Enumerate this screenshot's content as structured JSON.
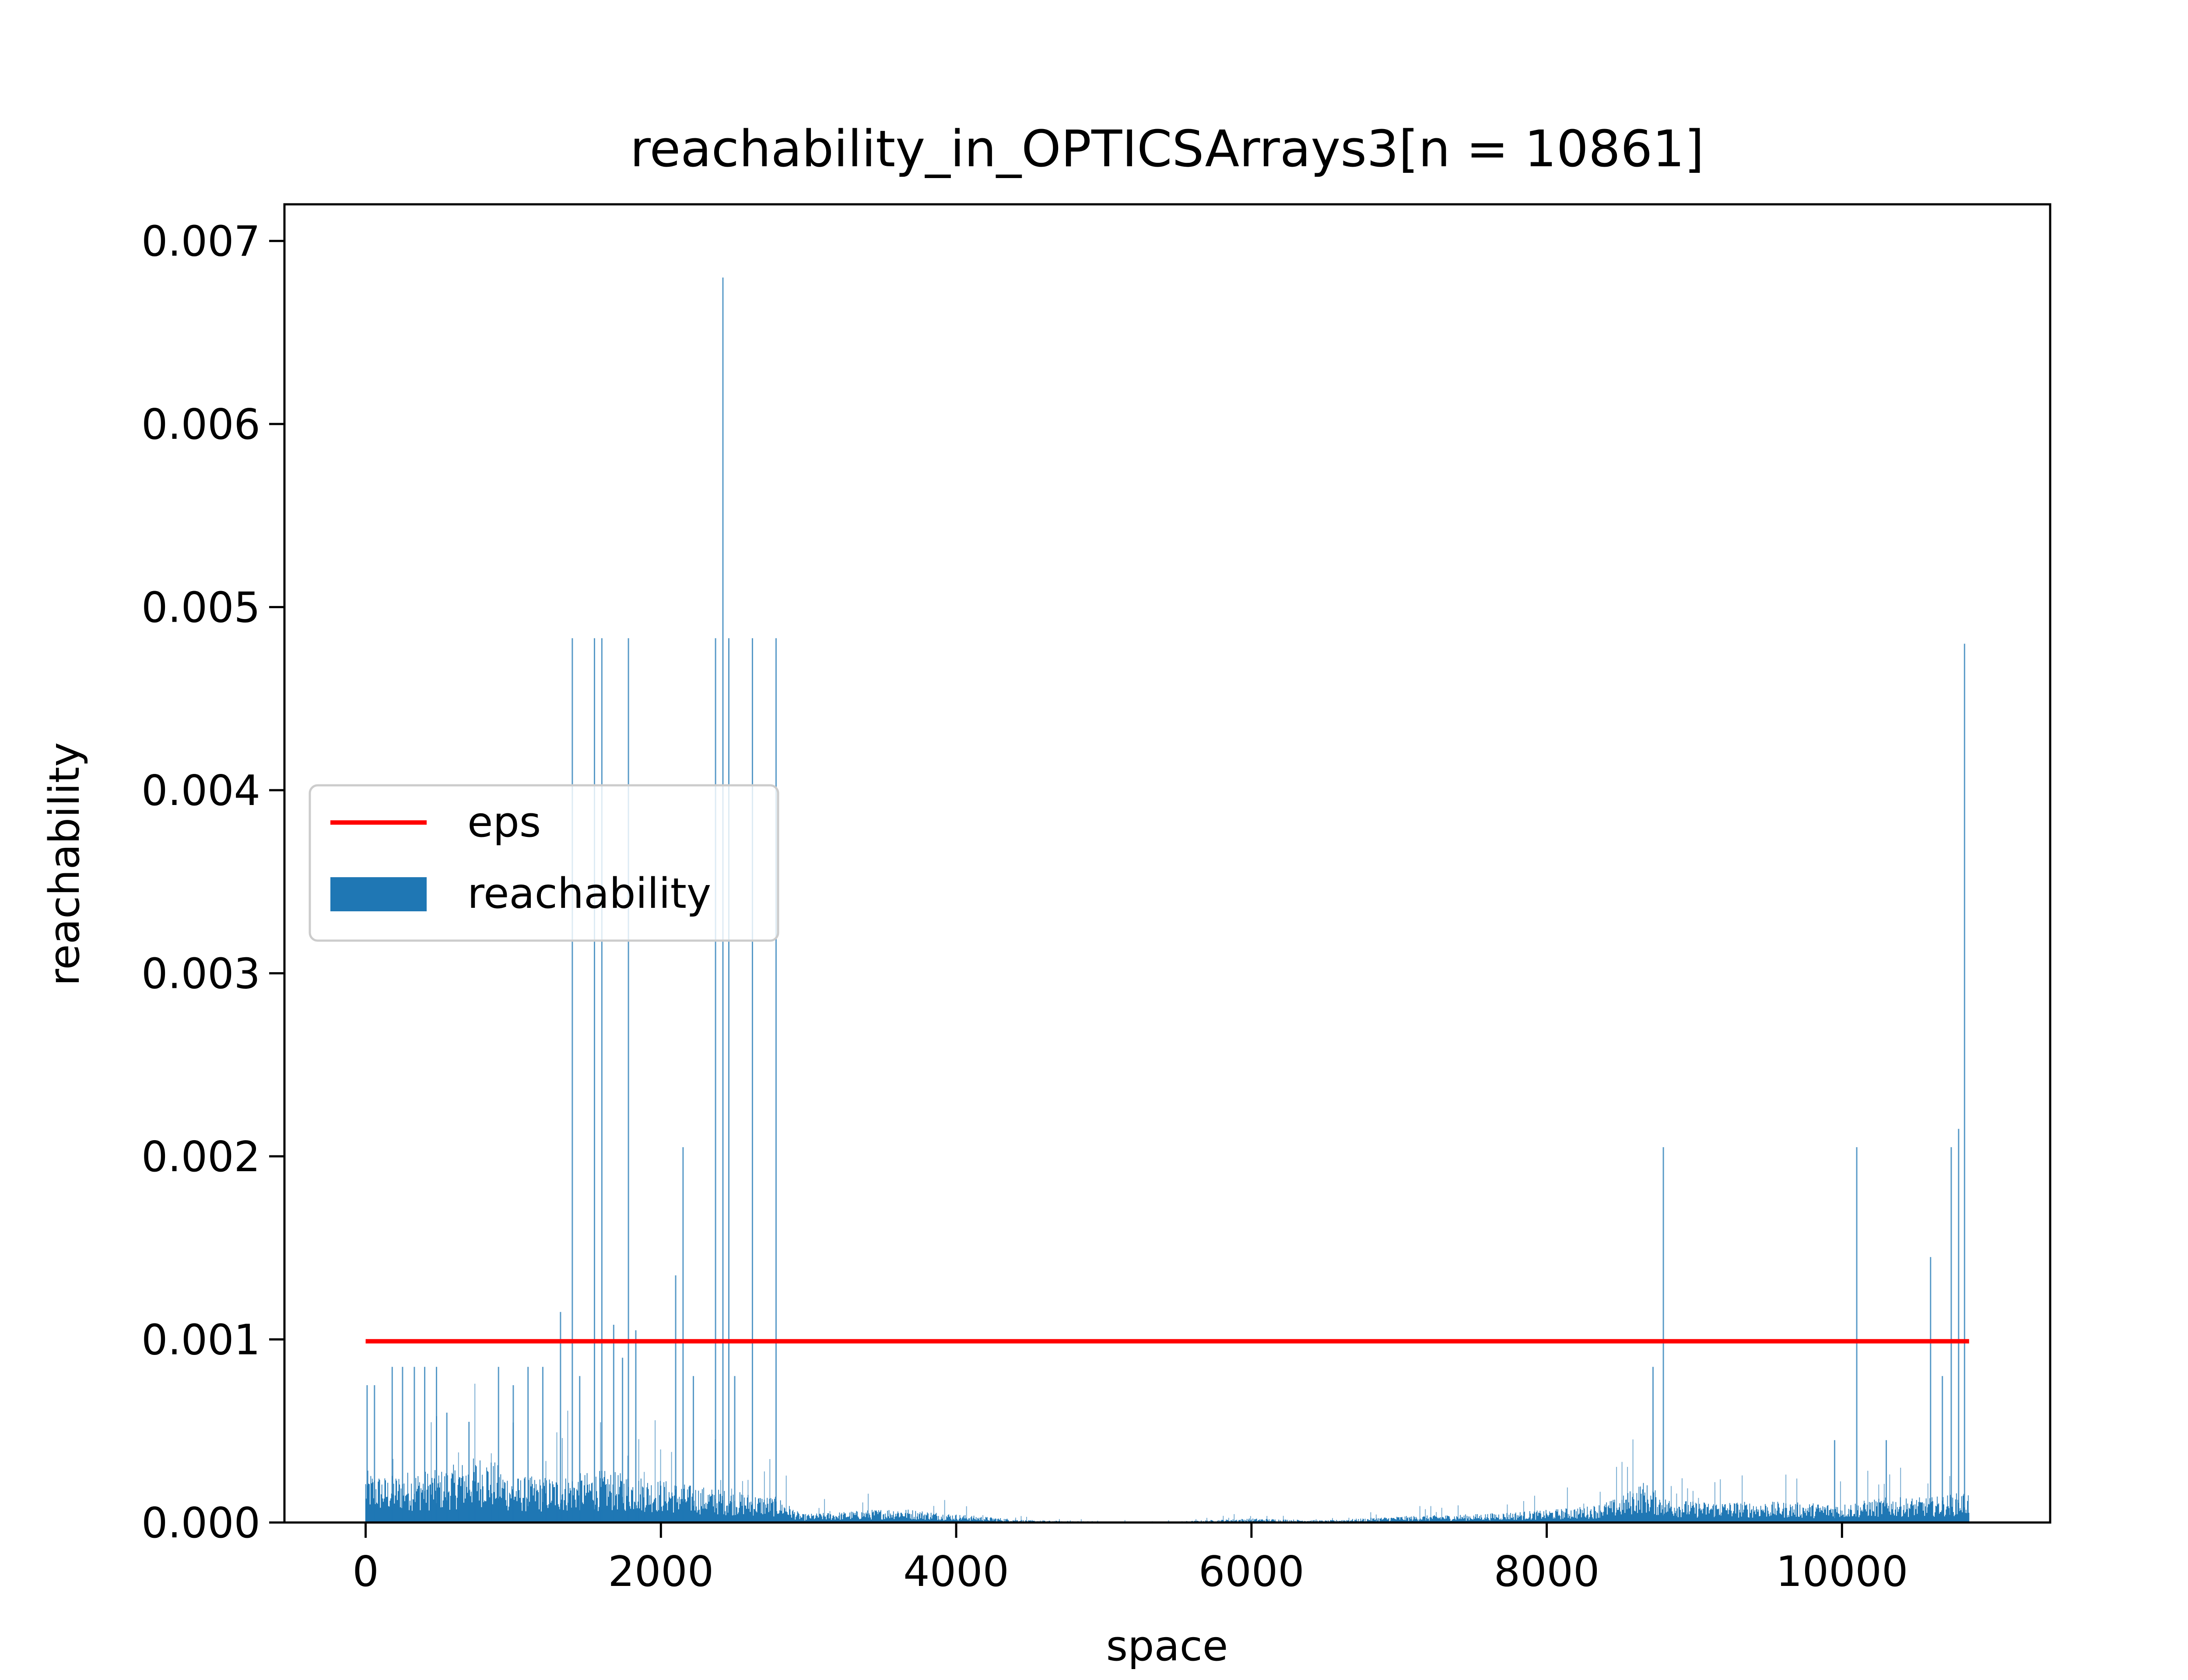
{
  "chart_data": {
    "type": "bar",
    "title": "reachability_in_OPTICSArrays3[n = 10861]",
    "xlabel": "space",
    "ylabel": "reachability",
    "xlim": [
      -550,
      11410
    ],
    "ylim": [
      0,
      0.0072
    ],
    "xticks": [
      0,
      2000,
      4000,
      6000,
      8000,
      10000
    ],
    "xtick_labels": [
      "0",
      "2000",
      "4000",
      "6000",
      "8000",
      "10000"
    ],
    "yticks": [
      0,
      0.001,
      0.002,
      0.003,
      0.004,
      0.005,
      0.006,
      0.007
    ],
    "ytick_labels": [
      "0.000",
      "0.001",
      "0.002",
      "0.003",
      "0.004",
      "0.005",
      "0.006",
      "0.007"
    ],
    "grid": false,
    "legend_position": "center-left",
    "series": [
      {
        "name": "eps",
        "kind": "line",
        "color": "#ff0000",
        "x": [
          0,
          10861
        ],
        "y": [
          0.00099,
          0.00099
        ]
      },
      {
        "name": "reachability",
        "kind": "bar",
        "color": "#1f77b4",
        "n": 10861,
        "approx_envelope": {
          "x": [
            0,
            150,
            300,
            500,
            800,
            1000,
            1300,
            1600,
            1900,
            2200,
            2500,
            2800,
            2950,
            3200,
            3600,
            4000,
            4500,
            5000,
            5500,
            6000,
            6500,
            7000,
            7500,
            8000,
            8300,
            8500,
            8650,
            8800,
            9000,
            9500,
            10000,
            10300,
            10600,
            10861
          ],
          "y": [
            0.00025,
            0.00022,
            0.00025,
            0.00025,
            0.00033,
            0.00022,
            0.00022,
            0.00025,
            0.00022,
            0.00018,
            0.00015,
            0.00012,
            4e-05,
            5e-05,
            7e-05,
            4e-05,
            1e-05,
            5e-06,
            5e-06,
            2e-05,
            1e-05,
            3e-05,
            4e-05,
            6e-05,
            8e-05,
            0.00012,
            0.0002,
            0.00012,
            0.0001,
            0.0001,
            9e-05,
            0.00012,
            0.00012,
            0.00015
          ]
        },
        "spikes": [
          {
            "x": 10,
            "y": 0.00075
          },
          {
            "x": 60,
            "y": 0.00075
          },
          {
            "x": 180,
            "y": 0.00085
          },
          {
            "x": 250,
            "y": 0.00085
          },
          {
            "x": 330,
            "y": 0.00085
          },
          {
            "x": 400,
            "y": 0.00085
          },
          {
            "x": 480,
            "y": 0.00085
          },
          {
            "x": 550,
            "y": 0.0006
          },
          {
            "x": 700,
            "y": 0.00055
          },
          {
            "x": 900,
            "y": 0.00085
          },
          {
            "x": 1000,
            "y": 0.00075
          },
          {
            "x": 1100,
            "y": 0.00085
          },
          {
            "x": 1200,
            "y": 0.00085
          },
          {
            "x": 1320,
            "y": 0.00115
          },
          {
            "x": 1400,
            "y": 0.00483
          },
          {
            "x": 1450,
            "y": 0.0008
          },
          {
            "x": 1550,
            "y": 0.00483
          },
          {
            "x": 1600,
            "y": 0.00483
          },
          {
            "x": 1680,
            "y": 0.00108
          },
          {
            "x": 1740,
            "y": 0.0009
          },
          {
            "x": 1780,
            "y": 0.00483
          },
          {
            "x": 1830,
            "y": 0.00105
          },
          {
            "x": 2100,
            "y": 0.00135
          },
          {
            "x": 2150,
            "y": 0.00205
          },
          {
            "x": 2220,
            "y": 0.0008
          },
          {
            "x": 2370,
            "y": 0.00483
          },
          {
            "x": 2420,
            "y": 0.0068
          },
          {
            "x": 2460,
            "y": 0.00483
          },
          {
            "x": 2500,
            "y": 0.0008
          },
          {
            "x": 2620,
            "y": 0.00483
          },
          {
            "x": 2780,
            "y": 0.00483
          },
          {
            "x": 8720,
            "y": 0.00085
          },
          {
            "x": 8790,
            "y": 0.00205
          },
          {
            "x": 9950,
            "y": 0.00045
          },
          {
            "x": 10100,
            "y": 0.00205
          },
          {
            "x": 10300,
            "y": 0.00045
          },
          {
            "x": 10600,
            "y": 0.00145
          },
          {
            "x": 10680,
            "y": 0.0008
          },
          {
            "x": 10740,
            "y": 0.00205
          },
          {
            "x": 10790,
            "y": 0.00215
          },
          {
            "x": 10830,
            "y": 0.0048
          }
        ]
      }
    ]
  }
}
